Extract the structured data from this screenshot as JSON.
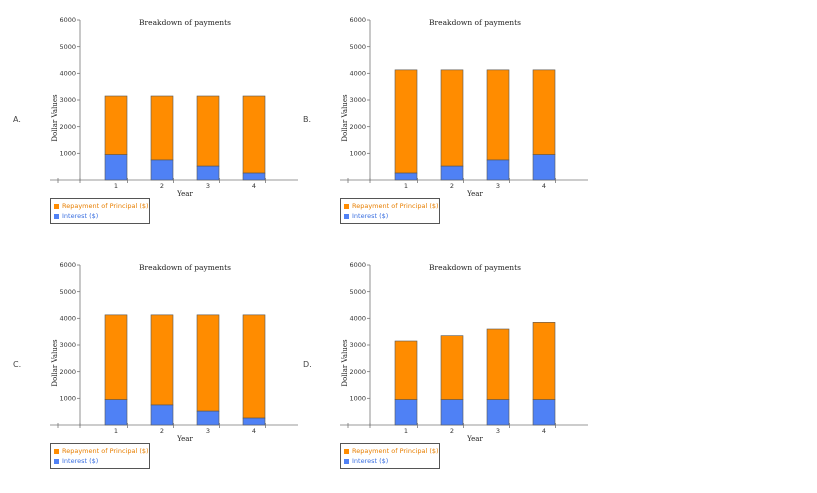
{
  "options": [
    {
      "label": "A."
    },
    {
      "label": "B."
    },
    {
      "label": "C."
    },
    {
      "label": "D."
    }
  ],
  "legend": {
    "principal_label": "Repayment of Principal ($)",
    "interest_label": "Interest ($)"
  },
  "colors": {
    "principal": "#ff8c00",
    "interest": "#4f81f5",
    "principal_text": "#e87f00",
    "interest_text": "#3a6fe0"
  },
  "chart_data": [
    {
      "type": "bar",
      "stacked": true,
      "title": "Breakdown of payments",
      "xlabel": "Year",
      "ylabel": "Dollar Values",
      "ylim": [
        0,
        6000
      ],
      "yticks": [
        1000,
        2000,
        3000,
        4000,
        5000,
        6000
      ],
      "categories": [
        "1",
        "2",
        "3",
        "4"
      ],
      "series": [
        {
          "name": "Interest ($)",
          "values": [
            950,
            750,
            520,
            260
          ]
        },
        {
          "name": "Repayment of Principal ($)",
          "values": [
            2200,
            2400,
            2630,
            2890
          ]
        }
      ]
    },
    {
      "type": "bar",
      "stacked": true,
      "title": "Breakdown of payments",
      "xlabel": "Year",
      "ylabel": "Dollar Values",
      "ylim": [
        0,
        6000
      ],
      "yticks": [
        1000,
        2000,
        3000,
        4000,
        5000,
        6000
      ],
      "categories": [
        "1",
        "2",
        "3",
        "4"
      ],
      "series": [
        {
          "name": "Interest ($)",
          "values": [
            260,
            520,
            750,
            950
          ]
        },
        {
          "name": "Repayment of Principal ($)",
          "values": [
            3870,
            3610,
            3380,
            3180
          ]
        }
      ]
    },
    {
      "type": "bar",
      "stacked": true,
      "title": "Breakdown of payments",
      "xlabel": "Year",
      "ylabel": "Dollar Values",
      "ylim": [
        0,
        6000
      ],
      "yticks": [
        1000,
        2000,
        3000,
        4000,
        5000,
        6000
      ],
      "categories": [
        "1",
        "2",
        "3",
        "4"
      ],
      "series": [
        {
          "name": "Interest ($)",
          "values": [
            950,
            750,
            520,
            260
          ]
        },
        {
          "name": "Repayment of Principal ($)",
          "values": [
            3180,
            3380,
            3610,
            3870
          ]
        }
      ]
    },
    {
      "type": "bar",
      "stacked": true,
      "title": "Breakdown of payments",
      "xlabel": "Year",
      "ylabel": "Dollar Values",
      "ylim": [
        0,
        6000
      ],
      "yticks": [
        1000,
        2000,
        3000,
        4000,
        5000,
        6000
      ],
      "categories": [
        "1",
        "2",
        "3",
        "4"
      ],
      "series": [
        {
          "name": "Interest ($)",
          "values": [
            950,
            950,
            950,
            950
          ]
        },
        {
          "name": "Repayment of Principal ($)",
          "values": [
            2200,
            2400,
            2650,
            2900
          ]
        }
      ]
    }
  ]
}
